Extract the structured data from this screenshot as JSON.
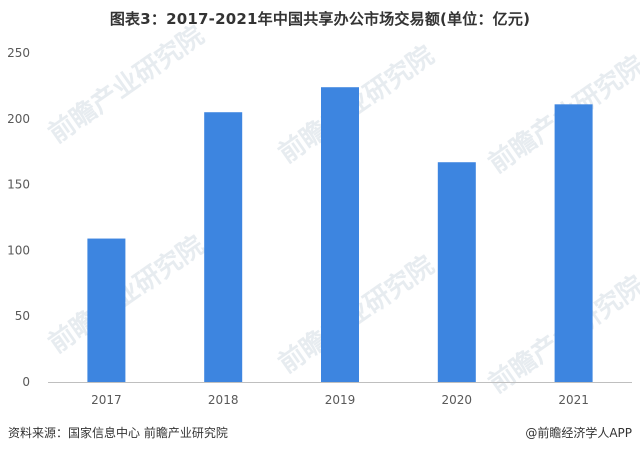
{
  "chart_data": {
    "type": "bar",
    "title": "图表3：2017-2021年中国共享办公市场交易额(单位：亿元)",
    "categories": [
      "2017",
      "2018",
      "2019",
      "2020",
      "2021"
    ],
    "values": [
      109,
      205,
      224,
      167,
      211
    ],
    "ylim": [
      0,
      250
    ],
    "yticks": [
      0,
      50,
      100,
      150,
      200,
      250
    ],
    "xlabel": "",
    "ylabel": "",
    "grid": false,
    "legend": "none",
    "bar_color": "#3d85e0"
  },
  "footer": {
    "source": "资料来源：国家信息中心 前瞻产业研究院",
    "credit": "@前瞻经济学人APP"
  },
  "watermark": {
    "text": "前瞻产业研究院"
  }
}
